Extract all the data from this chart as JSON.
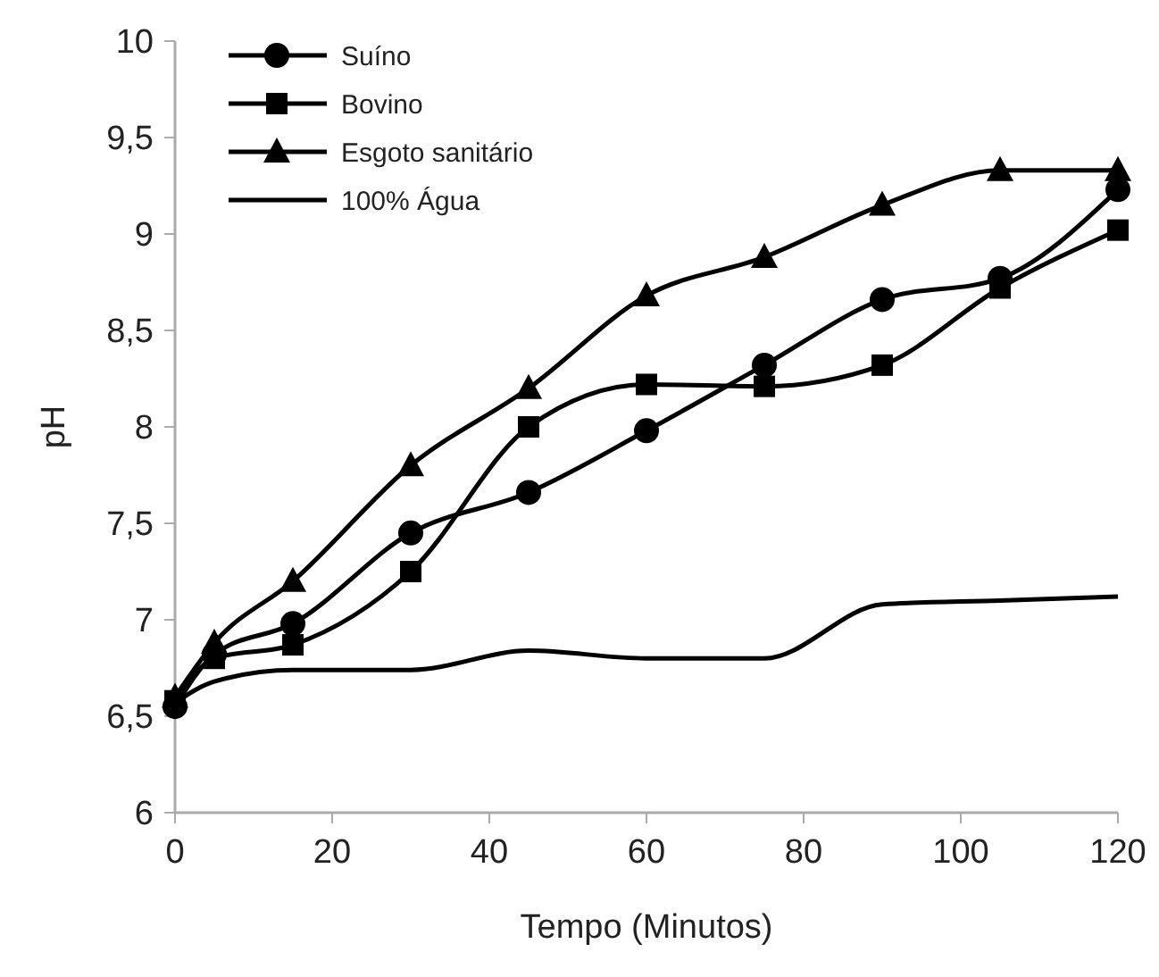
{
  "chart_data": {
    "type": "line",
    "xlabel": "Tempo (Minutos)",
    "ylabel": "pH",
    "x": [
      0,
      5,
      15,
      30,
      45,
      60,
      75,
      90,
      105,
      120
    ],
    "xlim": [
      0,
      120
    ],
    "xticks": [
      0,
      20,
      40,
      60,
      80,
      100,
      120
    ],
    "ylim": [
      6,
      10
    ],
    "yticks": [
      6,
      {
        "value": 6.5,
        "label": "6,5"
      },
      7,
      {
        "value": 7.5,
        "label": "7,5"
      },
      8,
      {
        "value": 8.5,
        "label": "8,5"
      },
      9,
      {
        "value": 9.5,
        "label": "9,5"
      },
      10
    ],
    "grid": false,
    "legend": "top left",
    "line_style": "solid",
    "series": [
      {
        "name": "Suíno",
        "color": "#000000",
        "marker": "circle",
        "values": [
          6.55,
          6.82,
          6.98,
          7.45,
          7.66,
          7.98,
          8.32,
          8.66,
          8.77,
          9.23
        ]
      },
      {
        "name": "Bovino",
        "color": "#000000",
        "marker": "square",
        "values": [
          6.58,
          6.8,
          6.87,
          7.25,
          8.0,
          8.22,
          8.21,
          8.32,
          8.72,
          9.02
        ]
      },
      {
        "name": "Esgoto sanitário",
        "color": "#000000",
        "marker": "triangle",
        "values": [
          6.6,
          6.88,
          7.2,
          7.8,
          8.2,
          8.68,
          8.88,
          9.15,
          9.33,
          9.33
        ]
      },
      {
        "name": "100% Água",
        "color": "#000000",
        "marker": "none",
        "values": [
          6.57,
          6.68,
          6.74,
          6.74,
          6.84,
          6.8,
          6.8,
          7.08,
          7.1,
          7.12
        ]
      }
    ]
  }
}
